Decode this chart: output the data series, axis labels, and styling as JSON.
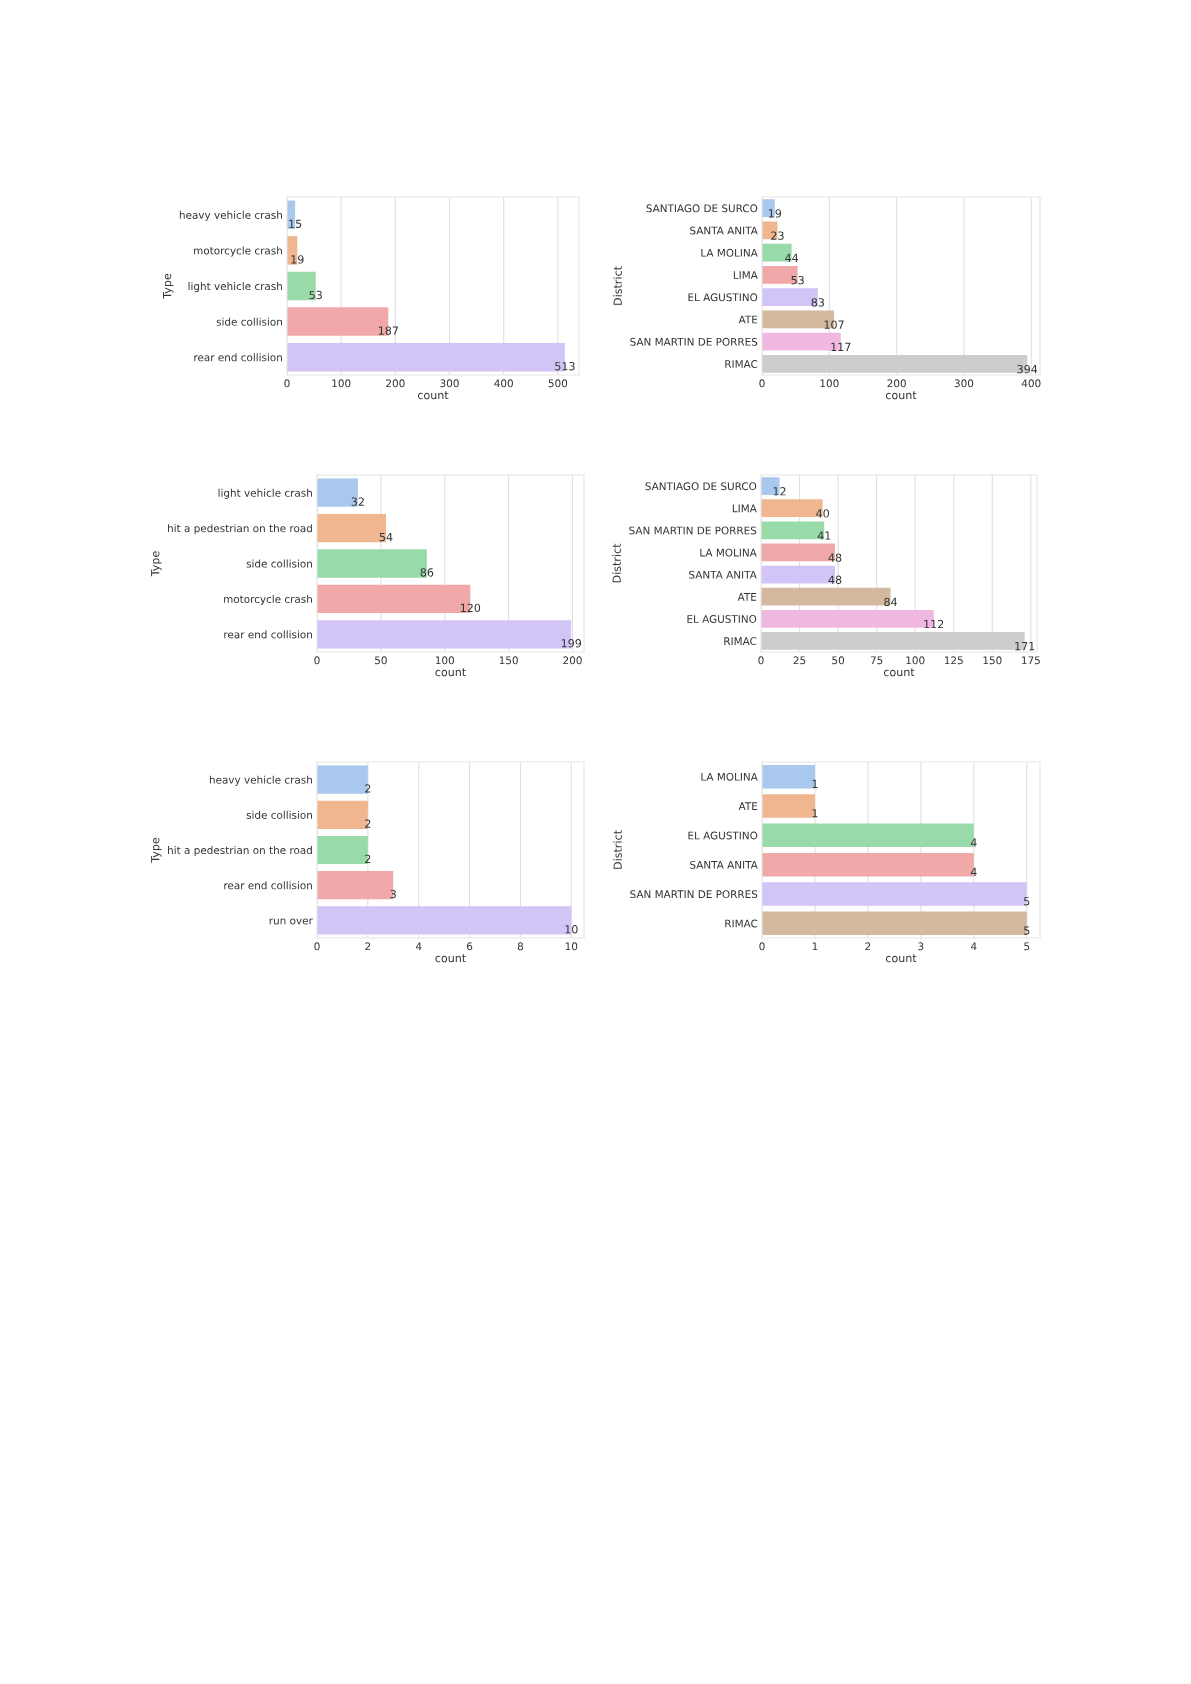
{
  "chart_data": [
    {
      "type": "bar",
      "orientation": "horizontal",
      "ylabel": "Type",
      "xlabel": "count",
      "categories": [
        "heavy vehicle crash",
        "motorcycle crash",
        "light vehicle crash",
        "side collision",
        "rear end collision"
      ],
      "values": [
        15,
        19,
        53,
        187,
        513
      ],
      "colors": [
        "#a8c8ee",
        "#f0b690",
        "#98dba8",
        "#f0a8a8",
        "#d2c4f6"
      ],
      "xlim": [
        0,
        539
      ],
      "xticks": [
        0,
        100,
        200,
        300,
        400,
        500
      ],
      "grid": "x",
      "data_labels": true
    },
    {
      "type": "bar",
      "orientation": "horizontal",
      "ylabel": "District",
      "xlabel": "count",
      "categories": [
        "SANTIAGO DE SURCO",
        "SANTA ANITA",
        "LA MOLINA",
        "LIMA",
        "EL AGUSTINO",
        "ATE",
        "SAN MARTIN DE PORRES",
        "RIMAC"
      ],
      "values": [
        19,
        23,
        44,
        53,
        83,
        107,
        117,
        394
      ],
      "colors": [
        "#a8c8ee",
        "#f0b690",
        "#98dba8",
        "#f0a8a8",
        "#d2c4f6",
        "#d4b8a0",
        "#f0b8e0",
        "#cccccc"
      ],
      "xlim": [
        0,
        413
      ],
      "xticks": [
        0,
        100,
        200,
        300,
        400
      ],
      "grid": "x",
      "data_labels": true
    },
    {
      "type": "bar",
      "orientation": "horizontal",
      "ylabel": "Type",
      "xlabel": "count",
      "categories": [
        "light vehicle crash",
        "hit a pedestrian on the road",
        "side collision",
        "motorcycle crash",
        "rear end collision"
      ],
      "values": [
        32,
        54,
        86,
        120,
        199
      ],
      "colors": [
        "#a8c8ee",
        "#f0b690",
        "#98dba8",
        "#f0a8a8",
        "#d2c4f6"
      ],
      "xlim": [
        0,
        209
      ],
      "xticks": [
        0,
        50,
        100,
        150,
        200
      ],
      "grid": "x",
      "data_labels": true
    },
    {
      "type": "bar",
      "orientation": "horizontal",
      "ylabel": "District",
      "xlabel": "count",
      "categories": [
        "SANTIAGO DE SURCO",
        "LIMA",
        "SAN MARTIN DE PORRES",
        "LA MOLINA",
        "SANTA ANITA",
        "ATE",
        "EL AGUSTINO",
        "RIMAC"
      ],
      "values": [
        12,
        40,
        41,
        48,
        48,
        84,
        112,
        171
      ],
      "colors": [
        "#a8c8ee",
        "#f0b690",
        "#98dba8",
        "#f0a8a8",
        "#d2c4f6",
        "#d4b8a0",
        "#f0b8e0",
        "#cccccc"
      ],
      "xlim": [
        0,
        179
      ],
      "xticks": [
        0,
        25,
        50,
        75,
        100,
        125,
        150,
        175
      ],
      "grid": "x",
      "data_labels": true
    },
    {
      "type": "bar",
      "orientation": "horizontal",
      "ylabel": "Type",
      "xlabel": "count",
      "categories": [
        "heavy vehicle crash",
        "side collision",
        "hit a pedestrian on the road",
        "rear end collision",
        "run over"
      ],
      "values": [
        2,
        2,
        2,
        3,
        10
      ],
      "colors": [
        "#a8c8ee",
        "#f0b690",
        "#98dba8",
        "#f0a8a8",
        "#d2c4f6"
      ],
      "xlim": [
        0,
        10.5
      ],
      "xticks": [
        0,
        2,
        4,
        6,
        8,
        10
      ],
      "grid": "x",
      "data_labels": true
    },
    {
      "type": "bar",
      "orientation": "horizontal",
      "ylabel": "District",
      "xlabel": "count",
      "categories": [
        "LA MOLINA",
        "ATE",
        "EL AGUSTINO",
        "SANTA ANITA",
        "SAN MARTIN DE PORRES",
        "RIMAC"
      ],
      "values": [
        1,
        1,
        4,
        4,
        5,
        5
      ],
      "colors": [
        "#a8c8ee",
        "#f0b690",
        "#98dba8",
        "#f0a8a8",
        "#d2c4f6",
        "#d4b8a0"
      ],
      "xlim": [
        0,
        5.25
      ],
      "xticks": [
        0,
        1,
        2,
        3,
        4,
        5
      ],
      "grid": "x",
      "data_labels": true
    }
  ]
}
